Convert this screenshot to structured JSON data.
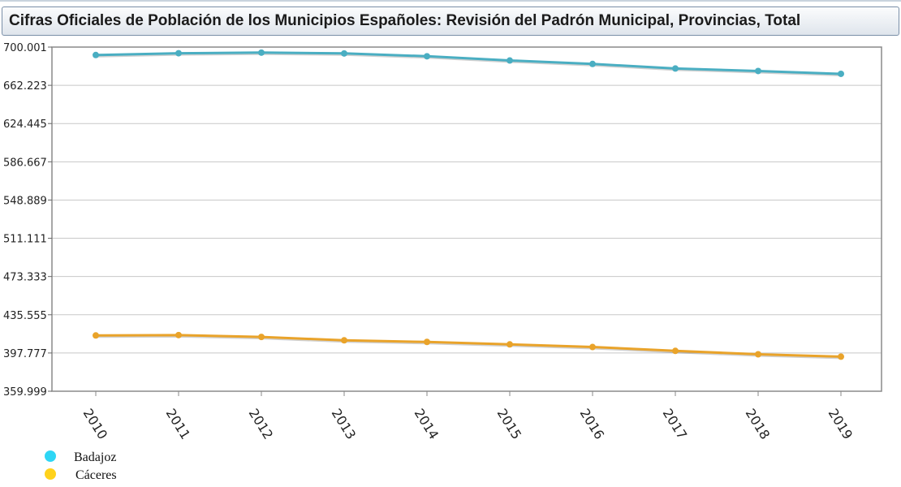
{
  "page": {
    "title": "Cifras Oficiales de Población de los Municipios Españoles: Revisión del Padrón Municipal, Provincias, Total"
  },
  "chart_data": {
    "type": "line",
    "title": "Cifras Oficiales de Población de los Municipios Españoles: Revisión del Padrón Municipal, Provincias, Total",
    "xlabel": "",
    "ylabel": "",
    "x": [
      "2010",
      "2011",
      "2012",
      "2013",
      "2014",
      "2015",
      "2016",
      "2017",
      "2018",
      "2019"
    ],
    "y_ticks": [
      "359.999",
      "397.777",
      "435.555",
      "473.333",
      "511.111",
      "548.889",
      "586.667",
      "624.445",
      "662.223",
      "700.001"
    ],
    "ylim": [
      359999,
      700001
    ],
    "grid": true,
    "legend_position": "bottom-left",
    "series": [
      {
        "name": "Badajoz",
        "color": "#4aaec2",
        "legend_color": "#2ed6f5",
        "values": [
          692137,
          693921,
          694533,
          693729,
          690929,
          686730,
          683341,
          678824,
          676376,
          673559
        ]
      },
      {
        "name": "Cáceres",
        "color": "#e9a32a",
        "legend_color": "#ffd21c",
        "values": [
          415083,
          415446,
          413633,
          410275,
          408703,
          406267,
          403665,
          399876,
          396487,
          394151
        ]
      }
    ]
  }
}
